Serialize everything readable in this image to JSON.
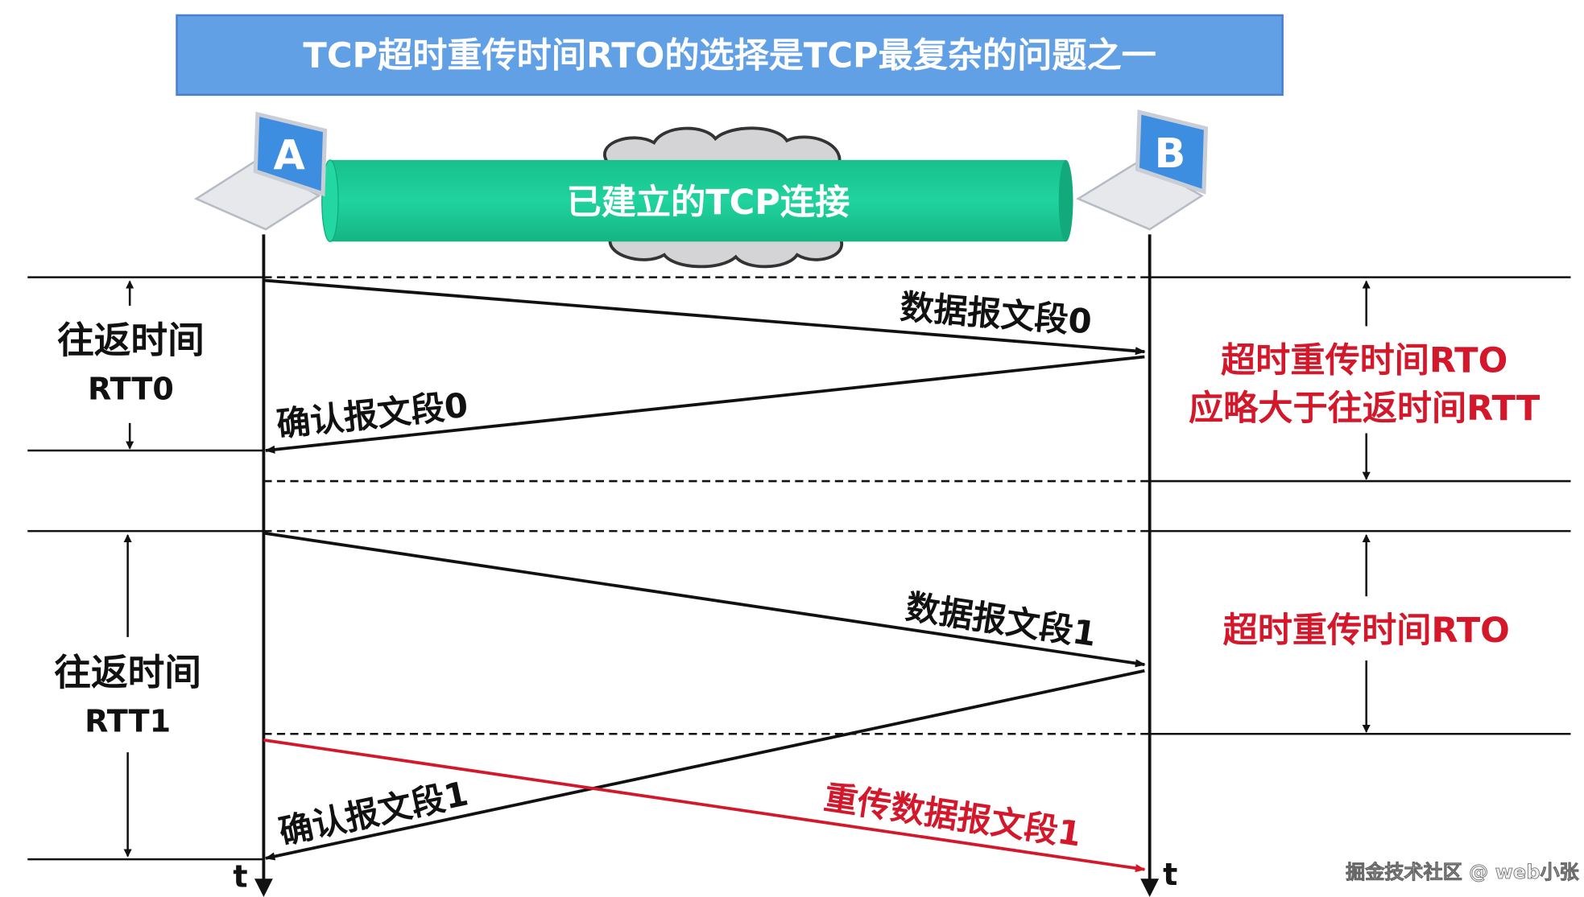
{
  "title": "TCP超时重传时间RTO的选择是TCP最复杂的问题之一",
  "connection_label": "已建立的TCP连接",
  "hosts": {
    "a": "A",
    "b": "B"
  },
  "segments": {
    "data0": "数据报文段0",
    "ack0": "确认报文段0",
    "data1": "数据报文段1",
    "ack1": "确认报文段1",
    "retransmit1": "重传数据报文段1"
  },
  "rtt0": {
    "line1": "往返时间",
    "line2": "RTT0"
  },
  "rtt1": {
    "line1": "往返时间",
    "line2": "RTT1"
  },
  "rto_note": {
    "line1": "超时重传时间RTO",
    "line2": "应略大于往返时间RTT"
  },
  "rto_label": "超时重传时间RTO",
  "time_axis": "t",
  "watermark": "掘金技术社区 @ web小张",
  "colors": {
    "title_bg": "#62a0e6",
    "pipe": "#1ecf9a",
    "red": "#d4182c"
  }
}
